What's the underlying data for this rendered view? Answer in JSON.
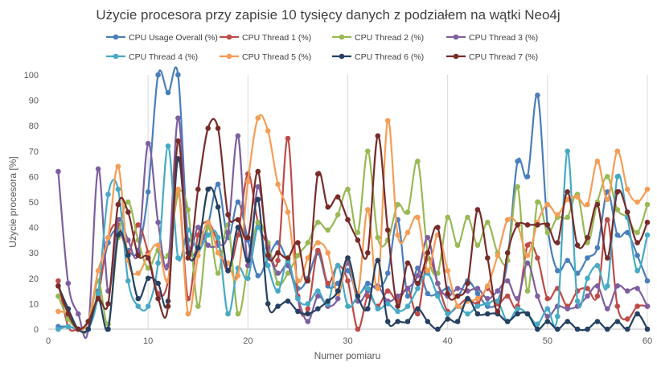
{
  "chart_data": {
    "type": "line",
    "title": "Użycie procesora przy zapisie 10 tysięcy danych z podziałem na wątki Neo4j",
    "xlabel": "Numer pomiaru",
    "ylabel": "Użycie procesora [%]",
    "xlim": [
      0,
      60
    ],
    "ylim": [
      0,
      100
    ],
    "x_ticks": [
      "0",
      "10",
      "20",
      "30",
      "40",
      "50",
      "60"
    ],
    "y_ticks": [
      "0",
      "10",
      "20",
      "30",
      "40",
      "50",
      "60",
      "70",
      "80",
      "90",
      "100"
    ],
    "grid": "vertical",
    "legend_position": "top",
    "x": [
      1,
      2,
      3,
      4,
      5,
      6,
      7,
      8,
      9,
      10,
      11,
      12,
      13,
      14,
      15,
      16,
      17,
      18,
      19,
      20,
      21,
      22,
      23,
      24,
      25,
      26,
      27,
      28,
      29,
      30,
      31,
      32,
      33,
      34,
      35,
      36,
      37,
      38,
      39,
      40,
      41,
      42,
      43,
      44,
      45,
      46,
      47,
      48,
      49,
      50,
      51,
      52,
      53,
      54,
      55,
      56,
      57,
      58,
      59,
      60
    ],
    "series": [
      {
        "name": "CPU Usage Overall (%)",
        "color": "#4a7ebb",
        "values": [
          1,
          1,
          0,
          0,
          15,
          34,
          39,
          31,
          31,
          54,
          100,
          93,
          100,
          35,
          32,
          41,
          57,
          36,
          50,
          35,
          21,
          28,
          34,
          26,
          16,
          20,
          30,
          17,
          18,
          23,
          14,
          18,
          16,
          22,
          43,
          13,
          24,
          14,
          14,
          16,
          13,
          19,
          14,
          9,
          11,
          27,
          66,
          60,
          92,
          41,
          23,
          27,
          22,
          28,
          32,
          54,
          37,
          38,
          29,
          19
        ],
        "label_cols": [
          "c1",
          "c2",
          "c3"
        ]
      },
      {
        "name": "CPU Thread 1 (%)",
        "color": "#be4b48",
        "values": [
          19,
          1,
          0,
          0,
          13,
          36,
          41,
          30,
          41,
          30,
          14,
          19,
          55,
          12,
          37,
          42,
          34,
          23,
          37,
          61,
          42,
          33,
          27,
          75,
          13,
          8,
          31,
          18,
          25,
          19,
          0,
          13,
          9,
          15,
          11,
          16,
          6,
          28,
          18,
          7,
          9,
          12,
          10,
          16,
          10,
          13,
          9,
          33,
          28,
          12,
          16,
          9,
          15,
          16,
          13,
          43,
          9,
          4,
          9,
          9
        ],
        "label_cols": [
          "c1",
          "c2",
          "c3"
        ]
      },
      {
        "name": "CPU Thread 2 (%)",
        "color": "#98b954",
        "values": [
          13,
          4,
          0,
          0,
          19,
          2,
          36,
          50,
          35,
          24,
          31,
          29,
          53,
          47,
          9,
          40,
          22,
          41,
          6,
          25,
          42,
          34,
          18,
          22,
          29,
          34,
          42,
          39,
          45,
          55,
          38,
          70,
          36,
          35,
          49,
          46,
          66,
          30,
          22,
          44,
          33,
          44,
          33,
          42,
          30,
          27,
          56,
          15,
          50,
          38,
          44,
          44,
          53,
          34,
          50,
          60,
          47,
          44,
          38,
          49
        ],
        "label_cols": [
          "c1",
          "c2",
          "c3"
        ]
      },
      {
        "name": "CPU Thread 3 (%)",
        "color": "#7d5fa0",
        "values": [
          62,
          18,
          6,
          0,
          63,
          15,
          43,
          35,
          30,
          73,
          42,
          25,
          83,
          32,
          40,
          33,
          33,
          38,
          76,
          25,
          56,
          32,
          22,
          25,
          12,
          3,
          13,
          9,
          12,
          26,
          11,
          15,
          17,
          11,
          13,
          16,
          21,
          36,
          18,
          13,
          16,
          15,
          16,
          12,
          15,
          19,
          12,
          26,
          13,
          5,
          9,
          8,
          9,
          13,
          17,
          8,
          17,
          15,
          16,
          9
        ],
        "label_cols": [
          "c1",
          "c2",
          "c3"
        ]
      },
      {
        "name": "CPU Thread 4 (%)",
        "color": "#46aac5",
        "values": [
          0,
          1,
          0,
          0,
          14,
          53,
          55,
          19,
          9,
          9,
          26,
          72,
          28,
          39,
          31,
          37,
          36,
          6,
          24,
          20,
          40,
          25,
          15,
          27,
          12,
          10,
          15,
          10,
          25,
          9,
          13,
          16,
          8,
          10,
          7,
          9,
          16,
          22,
          13,
          6,
          9,
          6,
          9,
          10,
          11,
          3,
          8,
          6,
          2,
          8,
          5,
          70,
          11,
          20,
          25,
          17,
          60,
          44,
          23,
          37
        ],
        "label_cols": [
          "c1",
          "c2",
          "c3"
        ]
      },
      {
        "name": "CPU Thread 5 (%)",
        "color": "#f59d56",
        "values": [
          7,
          6,
          0,
          3,
          23,
          36,
          64,
          27,
          22,
          29,
          33,
          19,
          55,
          6,
          29,
          42,
          30,
          26,
          21,
          58,
          83,
          78,
          57,
          46,
          19,
          28,
          34,
          30,
          14,
          28,
          14,
          47,
          16,
          82,
          37,
          38,
          44,
          23,
          37,
          23,
          9,
          11,
          12,
          17,
          29,
          43,
          41,
          29,
          42,
          49,
          45,
          51,
          52,
          49,
          66,
          51,
          70,
          55,
          50,
          55
        ],
        "label_cols": [
          "c1",
          "c2",
          "c3"
        ]
      },
      {
        "name": "CPU Thread 6 (%)",
        "color": "#254061",
        "values": [
          17,
          8,
          0,
          0,
          12,
          0,
          37,
          29,
          12,
          20,
          18,
          11,
          67,
          30,
          32,
          55,
          48,
          23,
          40,
          27,
          51,
          10,
          9,
          11,
          7,
          6,
          8,
          11,
          15,
          28,
          13,
          8,
          27,
          3,
          3,
          3,
          8,
          3,
          0,
          4,
          3,
          12,
          6,
          6,
          6,
          3,
          6,
          6,
          0,
          3,
          0,
          3,
          0,
          0,
          3,
          0,
          3,
          0,
          6,
          0
        ],
        "label_cols": [
          "c1",
          "c2",
          "c3"
        ]
      },
      {
        "name": "CPU Thread 7 (%)",
        "color": "#772c2a",
        "values": [
          17,
          6,
          0,
          3,
          12,
          10,
          49,
          46,
          29,
          28,
          12,
          9,
          74,
          28,
          55,
          79,
          79,
          45,
          43,
          36,
          62,
          29,
          30,
          28,
          34,
          19,
          61,
          48,
          52,
          43,
          35,
          30,
          76,
          39,
          9,
          26,
          18,
          30,
          40,
          14,
          13,
          18,
          47,
          28,
          7,
          30,
          41,
          41,
          41,
          41,
          34,
          54,
          33,
          36,
          49,
          28,
          54,
          46,
          34,
          42
        ],
        "label_cols": [
          "c1",
          "c2",
          "c3"
        ]
      }
    ]
  }
}
